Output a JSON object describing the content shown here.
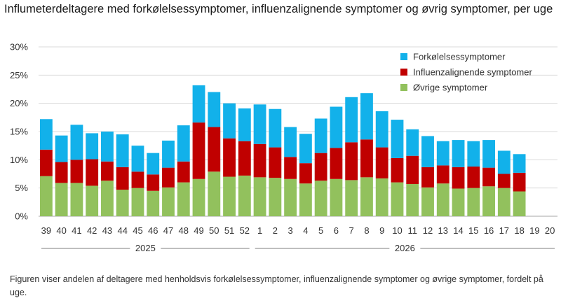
{
  "title": "Influmeterdeltagere med forkølelsessymptomer, influenzalignende symptomer og øvrig symptomer, per uge",
  "caption": "Figuren viser andelen af deltagere med henholdsvis forkølelsessymptomer, influenzalignende  symptomer og øvrige symptomer,  fordelt på uge.",
  "chart_data": {
    "type": "bar",
    "stacked": true,
    "title": "Influmeterdeltagere med forkølelsessymptomer, influenzalignende symptomer og øvrig symptomer, per uge",
    "ylim": [
      0,
      30
    ],
    "yticks": [
      "0%",
      "5%",
      "10%",
      "15%",
      "20%",
      "25%",
      "30%"
    ],
    "grid": true,
    "legend_position": "top-right",
    "categories": [
      "39",
      "40",
      "41",
      "42",
      "43",
      "44",
      "45",
      "46",
      "47",
      "48",
      "49",
      "50",
      "51",
      "52",
      "1",
      "2",
      "3",
      "4",
      "5",
      "6",
      "7",
      "8",
      "9",
      "10",
      "11",
      "12",
      "13",
      "14",
      "15",
      "16",
      "17",
      "18",
      "19",
      "20"
    ],
    "year_groups": [
      {
        "label": "2025",
        "from": "39",
        "to": "52"
      },
      {
        "label": "2026",
        "from": "1",
        "to": "20"
      }
    ],
    "series": [
      {
        "name": "Øvrige symptomer",
        "color": "#92c15d",
        "values": [
          7.1,
          5.9,
          5.9,
          5.4,
          6.3,
          4.7,
          5.0,
          4.5,
          5.1,
          6.0,
          6.6,
          7.9,
          7.0,
          7.2,
          6.9,
          6.8,
          6.6,
          5.8,
          6.3,
          6.6,
          6.4,
          6.9,
          6.7,
          6.0,
          5.7,
          5.1,
          5.8,
          4.9,
          5.0,
          5.3,
          5.0,
          4.4,
          null,
          null
        ]
      },
      {
        "name": "Influenzalignende symptomer",
        "color": "#c00000",
        "values": [
          4.7,
          3.7,
          4.1,
          4.7,
          3.4,
          4.0,
          2.9,
          2.9,
          3.5,
          3.7,
          10.0,
          7.9,
          6.8,
          6.1,
          5.9,
          5.4,
          3.9,
          3.6,
          4.9,
          5.5,
          6.7,
          6.7,
          5.5,
          4.3,
          5.0,
          3.6,
          3.2,
          3.8,
          3.8,
          3.3,
          2.5,
          3.3,
          null,
          null
        ]
      },
      {
        "name": "Forkølelsessymptomer",
        "color": "#12b1ea",
        "values": [
          5.4,
          4.7,
          6.2,
          4.6,
          5.3,
          5.8,
          4.6,
          3.8,
          4.8,
          6.4,
          6.6,
          6.2,
          6.2,
          5.8,
          7.0,
          6.8,
          5.3,
          5.2,
          6.1,
          7.3,
          8.0,
          8.2,
          6.4,
          6.8,
          4.7,
          5.5,
          4.3,
          4.8,
          4.5,
          4.9,
          4.1,
          3.3,
          null,
          null
        ]
      }
    ]
  }
}
